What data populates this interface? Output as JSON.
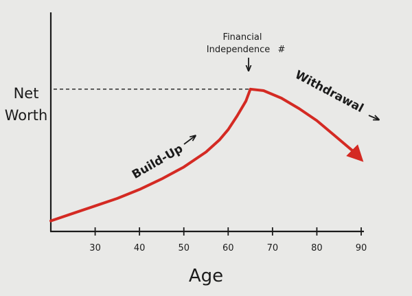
{
  "chart_data": {
    "type": "line",
    "title": "",
    "xlabel": "Age",
    "ylabel_lines": [
      "Net",
      "Worth"
    ],
    "xlim": [
      20,
      90
    ],
    "ylim": [
      0,
      100
    ],
    "x_ticks": [
      30,
      40,
      50,
      60,
      70,
      80,
      90
    ],
    "x_tick_labels": [
      "30",
      "40",
      "50",
      "60",
      "70",
      "80",
      "90"
    ],
    "series": [
      {
        "name": "",
        "color": "#d42a23",
        "x": [
          20,
          25,
          30,
          35,
          40,
          45,
          50,
          55,
          58,
          60,
          62,
          64,
          65,
          68,
          72,
          76,
          80,
          84,
          88,
          90
        ],
        "y": [
          2,
          7,
          12,
          17,
          23,
          30,
          38,
          48,
          56,
          63,
          72,
          82,
          90,
          89,
          84,
          77,
          69,
          59,
          49,
          43
        ]
      }
    ],
    "reference_line": {
      "y": 90,
      "style": "dashed",
      "x_end": 65
    },
    "annotations": {
      "peak_line1": "Financial",
      "peak_line2": "Independence",
      "peak_symbol": "#",
      "buildup": "Build-Up",
      "withdrawal": "Withdrawal"
    },
    "grid": false
  }
}
